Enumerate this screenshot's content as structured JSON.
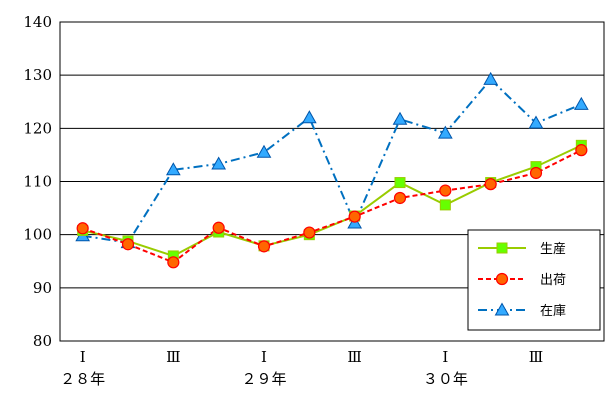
{
  "chart_data": {
    "type": "line",
    "y_axis": {
      "min": 80,
      "max": 140,
      "step": 10,
      "ticks": [
        "80",
        "90",
        "100",
        "110",
        "120",
        "130",
        "140"
      ]
    },
    "x_tick_labels": [
      "Ⅰ",
      "",
      "Ⅲ",
      "",
      "Ⅰ",
      "",
      "Ⅲ",
      "",
      "Ⅰ",
      "",
      "Ⅲ",
      ""
    ],
    "x_year_labels": [
      {
        "at": 0,
        "label": "２８年"
      },
      {
        "at": 4,
        "label": "２９年"
      },
      {
        "at": 8,
        "label": "３０年"
      }
    ],
    "grid": "horizontal",
    "legend_position": "bottom-right",
    "series": [
      {
        "name": "生産",
        "color": "#99cc00",
        "marker": "square",
        "dash": "solid",
        "values": [
          100.8,
          98.8,
          96.0,
          100.5,
          97.9,
          100.0,
          103.5,
          109.8,
          105.6,
          109.8,
          112.8,
          116.8
        ]
      },
      {
        "name": "出荷",
        "color": "#ff0000",
        "marker": "circle",
        "dash": "dashed",
        "values": [
          101.2,
          98.2,
          94.8,
          101.3,
          97.8,
          100.4,
          103.4,
          106.9,
          108.3,
          109.5,
          111.6,
          115.9
        ]
      },
      {
        "name": "在庫",
        "color": "#0070c0",
        "marker": "triangle",
        "dash": "dashdot",
        "values": [
          99.8,
          98.5,
          112.2,
          113.3,
          115.5,
          122.0,
          102.2,
          121.7,
          119.1,
          129.2,
          121.0,
          124.5
        ]
      }
    ]
  }
}
